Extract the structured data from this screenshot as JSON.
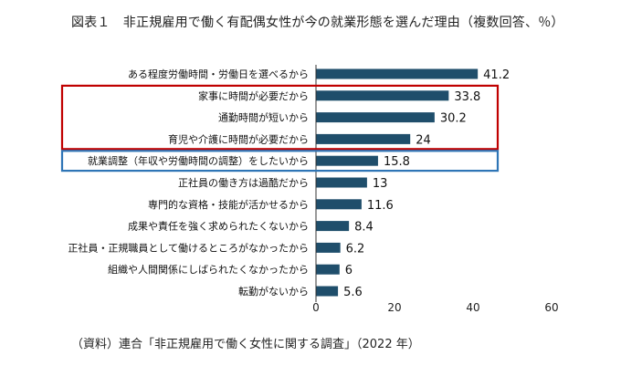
{
  "title": "図表１　非正規雇用で働く有配偶女性が今の就業形態を選んだ理由（複数回答、％）",
  "source": "（資料）連合「非正規雇用で働く女性に関する調査」（2022 年）",
  "chart_data": {
    "type": "bar",
    "orientation": "horizontal",
    "categories": [
      "ある程度労働時間・労働日を選べるから",
      "家事に時間が必要だから",
      "通勤時間が短いから",
      "育児や介護に時間が必要だから",
      "就業調整（年収や労働時間の調整）をしたいから",
      "正社員の働き方は過酷だから",
      "専門的な資格・技能が活かせるから",
      "成果や責任を強く求められたくないから",
      "正社員・正規職員として働けるところがなかったから",
      "組織や人間関係にしばられたくなかったから",
      "転勤がないから"
    ],
    "values": [
      41.2,
      33.8,
      30.2,
      24,
      15.8,
      13,
      11.6,
      8.4,
      6.2,
      6,
      5.6
    ],
    "value_labels": [
      "41.2",
      "33.8",
      "30.2",
      "24",
      "15.8",
      "13",
      "11.6",
      "8.4",
      "6.2",
      "6",
      "5.6"
    ],
    "xlim": [
      0,
      60
    ],
    "xticks": [
      "0",
      "20",
      "40",
      "60"
    ],
    "bar_color": "#1f4e6b",
    "highlight_groups": [
      {
        "indices": [
          1,
          2,
          3
        ],
        "color": "#c00000"
      },
      {
        "indices": [
          4
        ],
        "color": "#2e75b6"
      }
    ],
    "grid": false,
    "legend": "none"
  }
}
